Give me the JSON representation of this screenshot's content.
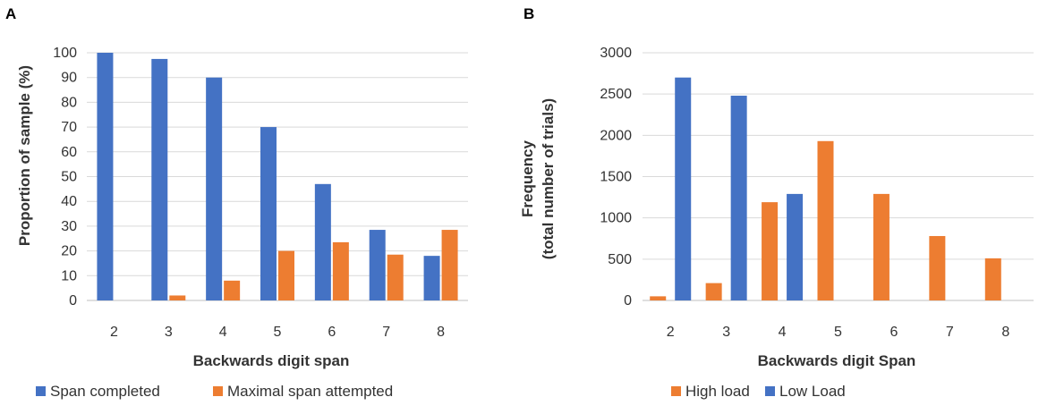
{
  "chart_data": [
    {
      "panel": "A",
      "type": "bar",
      "categories": [
        "2",
        "3",
        "4",
        "5",
        "6",
        "7",
        "8"
      ],
      "series": [
        {
          "name": "Span completed",
          "color": "#4472c4",
          "values": [
            100,
            97.5,
            90,
            70,
            47,
            28.5,
            18
          ]
        },
        {
          "name": "Maximal span attempted",
          "color": "#ed7d31",
          "values": [
            0,
            2,
            8,
            20,
            23.5,
            18.5,
            28.5
          ]
        }
      ],
      "title": "",
      "xlabel": "Backwards digit span",
      "ylabel": "Proportion of sample (%)",
      "ylim": [
        0,
        100
      ],
      "yticks": [
        "0",
        "10",
        "20",
        "30",
        "40",
        "50",
        "60",
        "70",
        "80",
        "90",
        "100"
      ],
      "grid": true,
      "legend": "bottom"
    },
    {
      "panel": "B",
      "type": "bar",
      "categories": [
        "2",
        "3",
        "4",
        "5",
        "6",
        "7",
        "8"
      ],
      "series": [
        {
          "name": "High load",
          "color": "#ed7d31",
          "values": [
            50,
            210,
            1190,
            1930,
            1290,
            780,
            510
          ]
        },
        {
          "name": "Low Load",
          "color": "#4472c4",
          "values": [
            2700,
            2480,
            1290,
            0,
            0,
            0,
            0
          ]
        }
      ],
      "title": "",
      "xlabel": "Backwards digit Span",
      "ylabel": "Frequency",
      "ylabel2": "(total number of trials)",
      "ylim": [
        0,
        3000
      ],
      "yticks": [
        "0",
        "500",
        "1000",
        "1500",
        "2000",
        "2500",
        "3000"
      ],
      "grid": true,
      "legend": "bottom"
    }
  ]
}
